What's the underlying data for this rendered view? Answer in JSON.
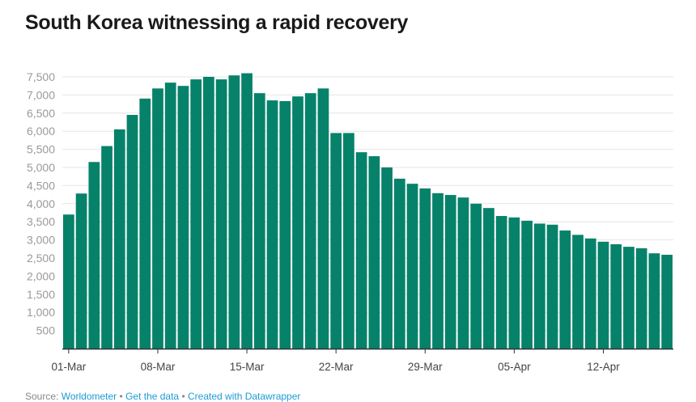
{
  "title": "South Korea witnessing a rapid recovery",
  "footer": {
    "source_label": "Source:",
    "source_link": "Worldometer",
    "separator": "•",
    "get_data": "Get the data",
    "created_with": "Created with Datawrapper"
  },
  "colors": {
    "bar": "#07826a",
    "grid": "#e6e6e6",
    "axis": "#333333",
    "link": "#1d9ad6"
  },
  "chart_data": {
    "type": "bar",
    "title": "South Korea witnessing a rapid recovery",
    "xlabel": "",
    "ylabel": "",
    "ylim": [
      0,
      7500
    ],
    "yticks": [
      500,
      1000,
      1500,
      2000,
      2500,
      3000,
      3500,
      4000,
      4500,
      5000,
      5500,
      6000,
      6500,
      7000,
      7500
    ],
    "ytick_labels": [
      "500",
      "1,000",
      "1,500",
      "2,000",
      "2,500",
      "3,000",
      "3,500",
      "4,000",
      "4,500",
      "5,000",
      "5,500",
      "6,000",
      "6,500",
      "7,000",
      "7,500"
    ],
    "xtick_labels": [
      "01-Mar",
      "08-Mar",
      "15-Mar",
      "22-Mar",
      "29-Mar",
      "05-Apr",
      "12-Apr"
    ],
    "grid": true,
    "categories": [
      "01-Mar",
      "02-Mar",
      "03-Mar",
      "04-Mar",
      "05-Mar",
      "06-Mar",
      "07-Mar",
      "08-Mar",
      "09-Mar",
      "10-Mar",
      "11-Mar",
      "12-Mar",
      "13-Mar",
      "14-Mar",
      "15-Mar",
      "16-Mar",
      "17-Mar",
      "18-Mar",
      "19-Mar",
      "20-Mar",
      "21-Mar",
      "22-Mar",
      "23-Mar",
      "24-Mar",
      "25-Mar",
      "26-Mar",
      "27-Mar",
      "28-Mar",
      "29-Mar",
      "30-Mar",
      "31-Mar",
      "01-Apr",
      "02-Apr",
      "03-Apr",
      "04-Apr",
      "05-Apr",
      "06-Apr",
      "07-Apr",
      "08-Apr",
      "09-Apr",
      "10-Apr",
      "11-Apr",
      "12-Apr",
      "13-Apr",
      "14-Apr",
      "15-Apr",
      "16-Apr",
      "17-Apr"
    ],
    "values": [
      3700,
      4280,
      5150,
      5590,
      6050,
      6450,
      6900,
      7180,
      7340,
      7250,
      7430,
      7500,
      7430,
      7540,
      7600,
      7050,
      6850,
      6830,
      6960,
      7050,
      7180,
      5950,
      5950,
      5420,
      5310,
      5000,
      4690,
      4550,
      4420,
      4290,
      4240,
      4170,
      4000,
      3880,
      3660,
      3620,
      3530,
      3450,
      3420,
      3260,
      3140,
      3040,
      2950,
      2880,
      2810,
      2770,
      2630,
      2590
    ]
  }
}
